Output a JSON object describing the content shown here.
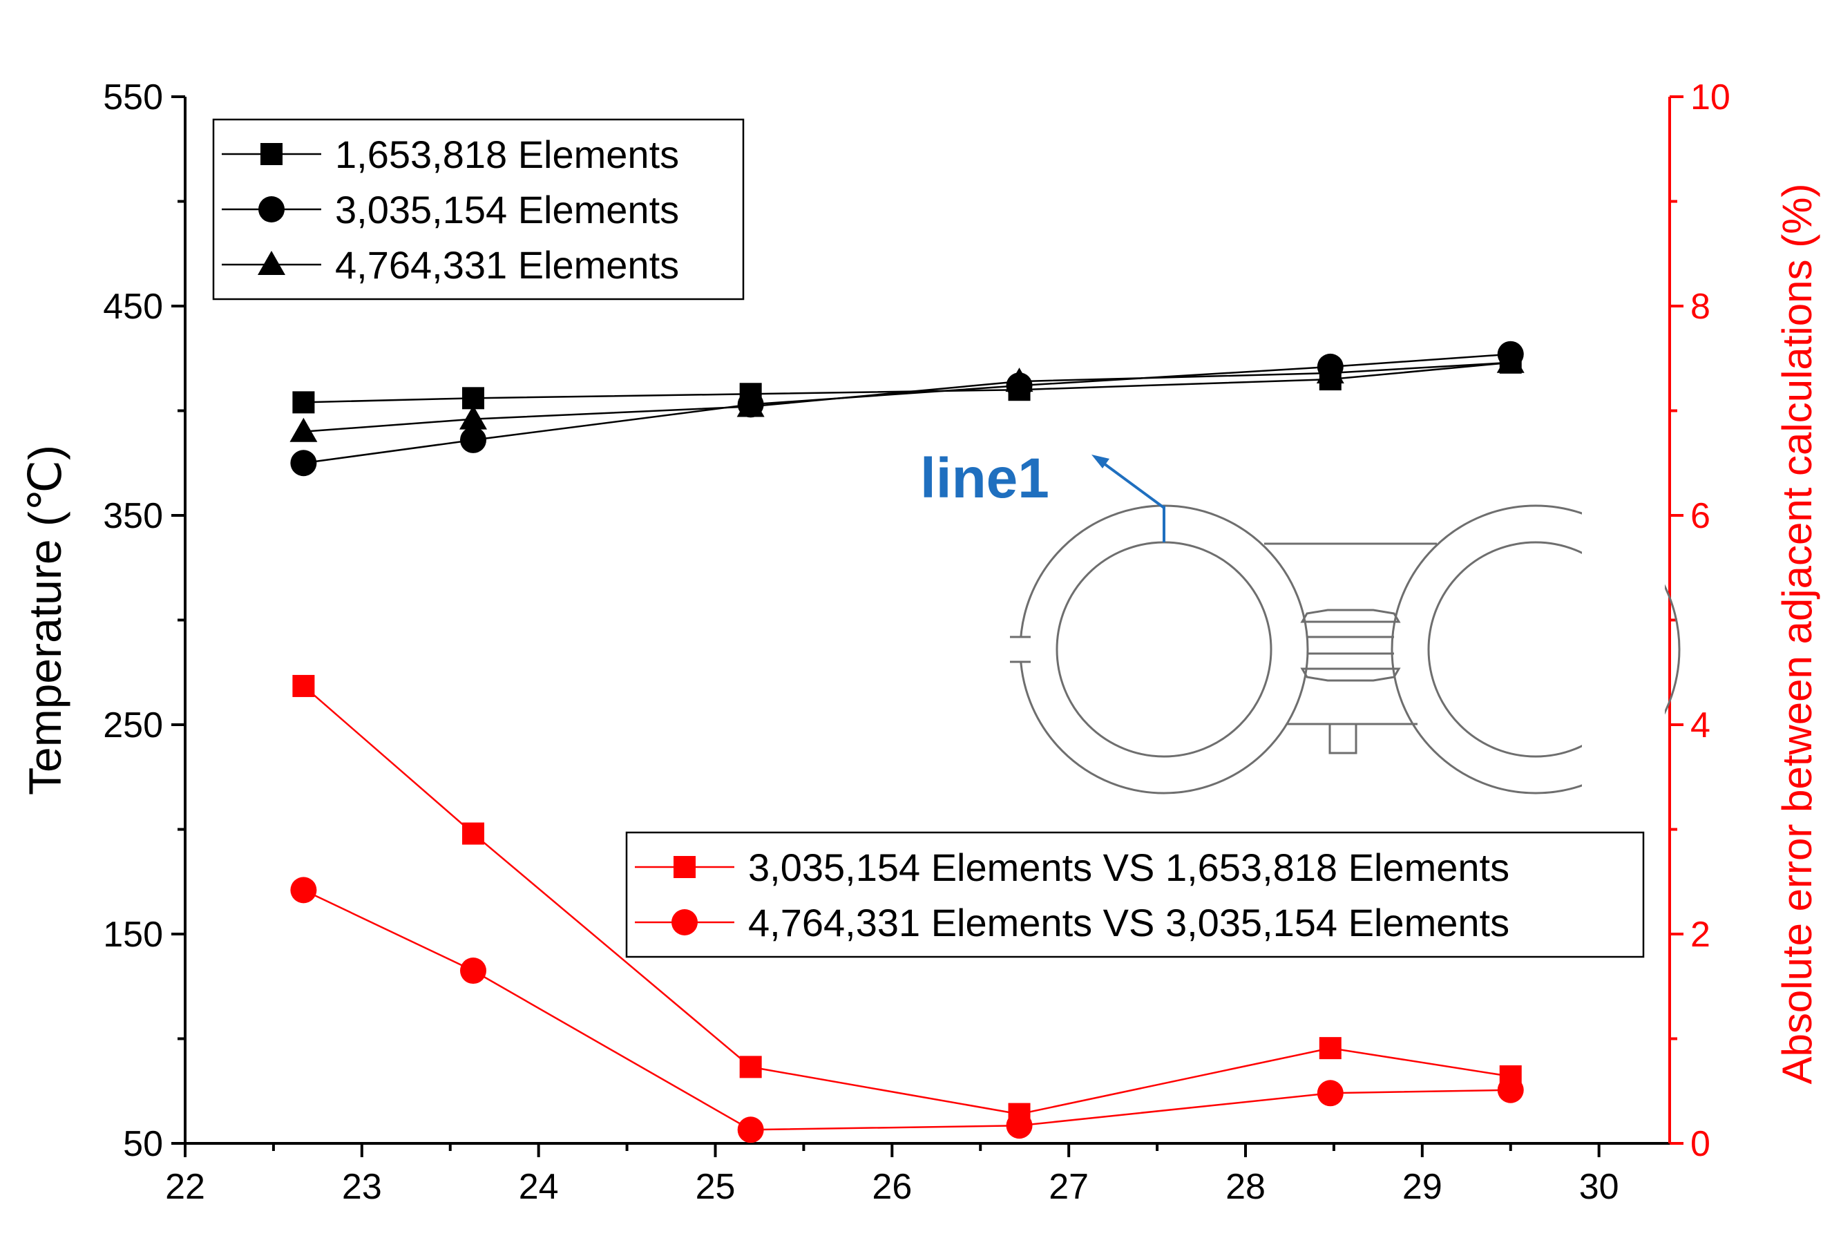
{
  "chart_data": {
    "type": "line",
    "title": "",
    "xlabel": "",
    "x": [
      22.67,
      23.63,
      25.2,
      26.72,
      28.48,
      29.5
    ],
    "x_ticks": [
      "22",
      "23",
      "24",
      "25",
      "26",
      "27",
      "28",
      "29",
      "30"
    ],
    "xlim": [
      22,
      30.4
    ],
    "left_axis": {
      "ylabel": "Temperature (℃)",
      "ylim": [
        50,
        550
      ],
      "ticks": [
        "50",
        "150",
        "250",
        "350",
        "450",
        "550"
      ]
    },
    "right_axis": {
      "ylabel": "Absolute error between adjacent calculations (%)",
      "ylim": [
        0,
        10
      ],
      "ticks": [
        "0",
        "2",
        "4",
        "6",
        "8",
        "10"
      ],
      "color": "#ff0000"
    },
    "series": [
      {
        "name": "1,653,818 Elements",
        "axis": "left",
        "marker": "square",
        "color": "#000000",
        "values": [
          404,
          406,
          408,
          410,
          415,
          423
        ]
      },
      {
        "name": "3,035,154 Elements",
        "axis": "left",
        "marker": "circle",
        "color": "#000000",
        "values": [
          375,
          386,
          403,
          412,
          421,
          427
        ]
      },
      {
        "name": "4,764,331 Elements",
        "axis": "left",
        "marker": "triangle",
        "color": "#000000",
        "values": [
          390,
          396,
          402,
          414,
          418,
          423
        ]
      },
      {
        "name": "3,035,154 Elements VS 1,653,818 Elements",
        "axis": "right",
        "marker": "square",
        "color": "#ff0000",
        "values": [
          4.37,
          2.96,
          0.73,
          0.28,
          0.91,
          0.64
        ]
      },
      {
        "name": "4,764,331 Elements VS 3,035,154 Elements",
        "axis": "right",
        "marker": "circle",
        "color": "#ff0000",
        "values": [
          2.42,
          1.65,
          0.13,
          0.17,
          0.48,
          0.51
        ]
      }
    ],
    "legend_top_left": [
      "1,653,818 Elements",
      "3,035,154 Elements",
      "4,764,331 Elements"
    ],
    "legend_bottom_right": [
      "3,035,154 Elements VS 1,653,818 Elements",
      "4,764,331 Elements VS 3,035,154 Elements"
    ],
    "inset_label": "line1"
  }
}
